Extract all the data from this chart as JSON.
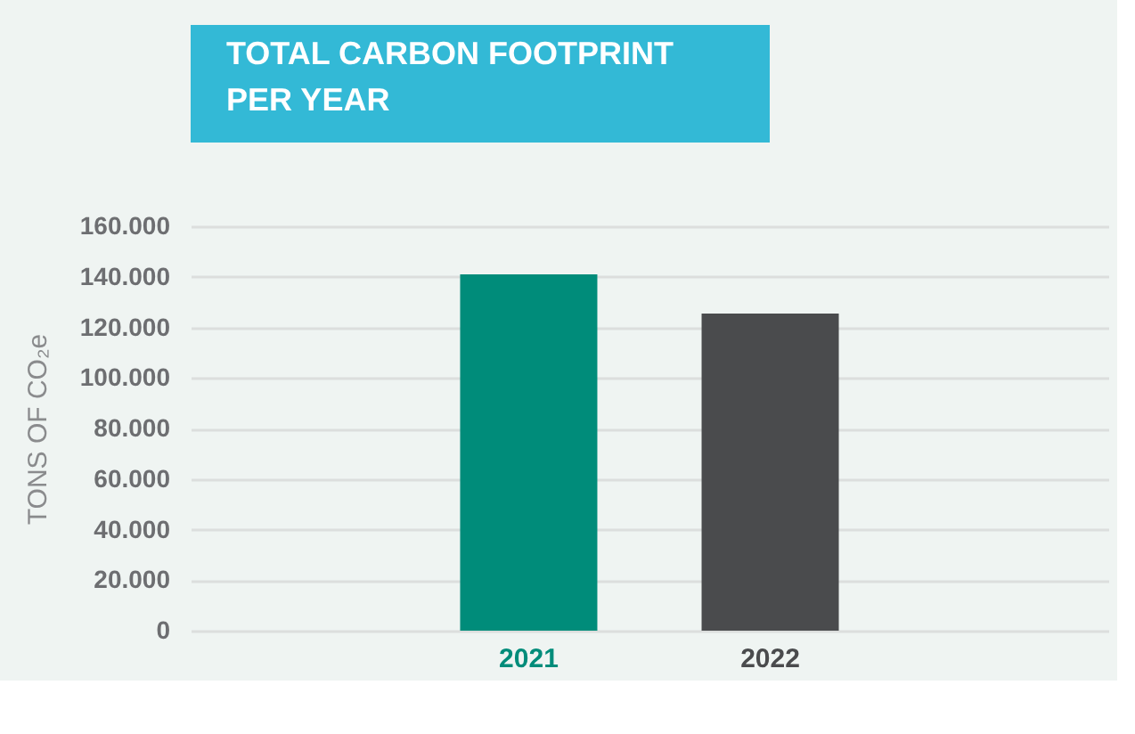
{
  "chart_data": {
    "type": "bar",
    "title": "TOTAL CARBON FOOTPRINT\nPER YEAR",
    "ylabel": "TONS OF CO₂e",
    "categories": [
      "2021",
      "2022"
    ],
    "values": [
      141000,
      125500
    ],
    "colors": [
      "#008c7a",
      "#4a4b4d"
    ],
    "ylim": [
      0,
      160000
    ],
    "yticks": [
      0,
      {
        "value": 20000,
        "label": "20.000"
      },
      {
        "value": 40000,
        "label": "40.000"
      },
      {
        "value": 60000,
        "label": "60.000"
      },
      {
        "value": 80000,
        "label": "80.000"
      },
      {
        "value": 100000,
        "label": "100.000"
      },
      {
        "value": 120000,
        "label": "120.000"
      },
      {
        "value": 140000,
        "label": "140.000"
      },
      {
        "value": 160000,
        "label": "160.000"
      }
    ],
    "grid": "y"
  }
}
